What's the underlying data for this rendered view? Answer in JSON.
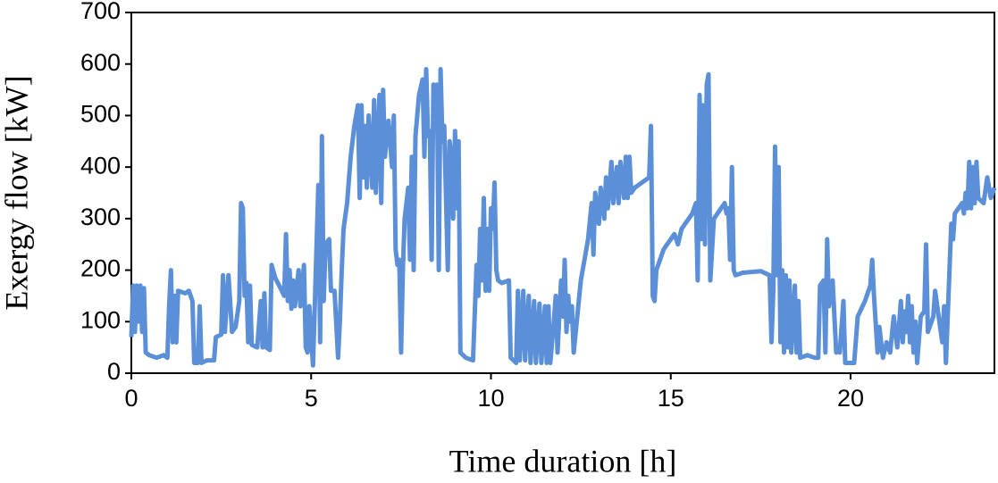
{
  "chart_data": {
    "type": "line",
    "xlabel": "Time duration [h]",
    "ylabel": "Exergy flow [kW]",
    "xlim": [
      0,
      24
    ],
    "xticks": [
      0,
      5,
      10,
      15,
      20
    ],
    "ylim": [
      0,
      700
    ],
    "yticks": [
      0,
      100,
      200,
      300,
      400,
      500,
      600,
      700
    ],
    "color": "#5b8fd8",
    "x": [
      0,
      0.05,
      0.1,
      0.15,
      0.2,
      0.25,
      0.3,
      0.35,
      0.4,
      0.5,
      0.7,
      0.9,
      1.0,
      1.05,
      1.1,
      1.15,
      1.2,
      1.25,
      1.3,
      1.5,
      1.6,
      1.7,
      1.75,
      1.85,
      1.9,
      1.95,
      2.1,
      2.3,
      2.35,
      2.5,
      2.55,
      2.6,
      2.7,
      2.8,
      2.9,
      3.0,
      3.05,
      3.1,
      3.15,
      3.2,
      3.25,
      3.3,
      3.35,
      3.5,
      3.6,
      3.65,
      3.7,
      3.75,
      3.85,
      3.9,
      4.0,
      4.15,
      4.25,
      4.3,
      4.35,
      4.4,
      4.45,
      4.5,
      4.55,
      4.65,
      4.7,
      4.8,
      4.85,
      4.9,
      4.95,
      5.05,
      5.1,
      5.2,
      5.25,
      5.3,
      5.35,
      5.4,
      5.5,
      5.55,
      5.65,
      5.75,
      5.8,
      5.85,
      5.9,
      6.0,
      6.1,
      6.2,
      6.3,
      6.35,
      6.4,
      6.45,
      6.5,
      6.55,
      6.6,
      6.7,
      6.75,
      6.8,
      6.9,
      6.95,
      7.0,
      7.05,
      7.15,
      7.25,
      7.3,
      7.35,
      7.4,
      7.45,
      7.5,
      7.55,
      7.6,
      7.7,
      7.75,
      7.8,
      7.85,
      7.9,
      8.0,
      8.1,
      8.15,
      8.2,
      8.25,
      8.3,
      8.35,
      8.4,
      8.45,
      8.5,
      8.55,
      8.6,
      8.65,
      8.7,
      8.8,
      8.85,
      8.9,
      8.95,
      9.0,
      9.05,
      9.1,
      9.15,
      9.3,
      9.5,
      9.6,
      9.65,
      9.7,
      9.75,
      9.8,
      9.85,
      9.9,
      9.95,
      10.0,
      10.05,
      10.1,
      10.15,
      10.2,
      10.3,
      10.5,
      10.55,
      10.7,
      10.75,
      10.8,
      10.9,
      10.95,
      11.05,
      11.1,
      11.2,
      11.25,
      11.35,
      11.4,
      11.5,
      11.55,
      11.6,
      11.65,
      11.75,
      11.8,
      11.85,
      11.95,
      12.0,
      12.05,
      12.1,
      12.15,
      12.2,
      12.25,
      12.3,
      12.4,
      12.5,
      12.6,
      12.7,
      12.8,
      12.85,
      12.9,
      13.0,
      13.05,
      13.15,
      13.2,
      13.25,
      13.35,
      13.4,
      13.5,
      13.55,
      13.6,
      13.7,
      13.75,
      13.8,
      13.85,
      13.9,
      14.0,
      14.2,
      14.4,
      14.45,
      14.5,
      14.55,
      14.6,
      14.7,
      14.8,
      14.9,
      15.0,
      15.1,
      15.2,
      15.3,
      15.4,
      15.5,
      15.6,
      15.7,
      15.75,
      15.8,
      15.85,
      15.9,
      15.95,
      16.0,
      16.05,
      16.1,
      16.2,
      16.3,
      16.4,
      16.5,
      16.55,
      16.6,
      16.65,
      16.7,
      16.75,
      16.8,
      17.0,
      17.5,
      17.75,
      17.8,
      17.85,
      17.9,
      17.95,
      18.0,
      18.05,
      18.1,
      18.15,
      18.2,
      18.25,
      18.3,
      18.35,
      18.45,
      18.5,
      18.55,
      18.6,
      18.8,
      19.0,
      19.1,
      19.15,
      19.25,
      19.3,
      19.35,
      19.4,
      19.5,
      19.6,
      19.65,
      19.7,
      19.8,
      19.85,
      20.1,
      20.2,
      20.4,
      20.55,
      20.6,
      20.65,
      20.75,
      20.8,
      20.9,
      21.0,
      21.1,
      21.2,
      21.3,
      21.4,
      21.45,
      21.5,
      21.55,
      21.6,
      21.65,
      21.7,
      21.75,
      21.8,
      21.85,
      21.95,
      22.05,
      22.1,
      22.15,
      22.3,
      22.35,
      22.45,
      22.55,
      22.6,
      22.65,
      22.75,
      22.8,
      22.85,
      22.9,
      23.0,
      23.1,
      23.15,
      23.2,
      23.25,
      23.3,
      23.35,
      23.4,
      23.45,
      23.5,
      23.55,
      23.7,
      23.8,
      23.9,
      24
    ],
    "values": [
      70,
      170,
      80,
      170,
      100,
      170,
      80,
      165,
      40,
      35,
      30,
      35,
      30,
      130,
      200,
      60,
      150,
      60,
      160,
      155,
      160,
      140,
      20,
      20,
      130,
      20,
      25,
      25,
      70,
      75,
      190,
      80,
      190,
      80,
      90,
      140,
      330,
      320,
      150,
      175,
      60,
      170,
      55,
      50,
      140,
      50,
      155,
      50,
      45,
      210,
      185,
      165,
      150,
      270,
      140,
      200,
      125,
      180,
      130,
      200,
      130,
      210,
      50,
      40,
      130,
      15,
      130,
      365,
      60,
      460,
      140,
      250,
      260,
      160,
      160,
      30,
      100,
      200,
      280,
      330,
      420,
      480,
      520,
      340,
      520,
      380,
      480,
      360,
      500,
      360,
      530,
      350,
      540,
      330,
      550,
      420,
      490,
      400,
      500,
      240,
      210,
      220,
      40,
      200,
      300,
      360,
      220,
      420,
      200,
      460,
      540,
      570,
      420,
      590,
      460,
      470,
      220,
      560,
      500,
      560,
      200,
      590,
      450,
      480,
      200,
      450,
      420,
      300,
      470,
      320,
      450,
      40,
      30,
      25,
      210,
      150,
      280,
      180,
      340,
      160,
      280,
      160,
      320,
      280,
      370,
      200,
      180,
      175,
      180,
      30,
      20,
      160,
      25,
      160,
      25,
      150,
      20,
      140,
      20,
      135,
      20,
      130,
      20,
      130,
      20,
      100,
      150,
      40,
      180,
      110,
      220,
      80,
      150,
      100,
      130,
      40,
      110,
      180,
      220,
      260,
      330,
      230,
      350,
      290,
      360,
      300,
      380,
      320,
      410,
      330,
      400,
      330,
      410,
      340,
      420,
      340,
      420,
      350,
      360,
      370,
      380,
      480,
      150,
      140,
      200,
      220,
      240,
      250,
      260,
      270,
      250,
      280,
      290,
      300,
      310,
      330,
      180,
      540,
      260,
      520,
      250,
      560,
      580,
      180,
      300,
      310,
      320,
      330,
      310,
      320,
      220,
      400,
      200,
      190,
      195,
      198,
      190,
      60,
      160,
      440,
      190,
      400,
      60,
      200,
      40,
      190,
      50,
      180,
      40,
      170,
      40,
      140,
      30,
      35,
      30,
      30,
      170,
      180,
      40,
      260,
      130,
      180,
      40,
      50,
      40,
      140,
      20,
      20,
      110,
      140,
      170,
      220,
      150,
      40,
      90,
      30,
      60,
      40,
      110,
      50,
      140,
      60,
      120,
      80,
      150,
      60,
      130,
      40,
      100,
      20,
      110,
      120,
      250,
      80,
      110,
      160,
      110,
      60,
      130,
      20,
      200,
      290,
      260,
      310,
      320,
      330,
      310,
      350,
      320,
      410,
      320,
      400,
      330,
      410,
      340,
      330,
      380,
      340,
      360
    ]
  }
}
